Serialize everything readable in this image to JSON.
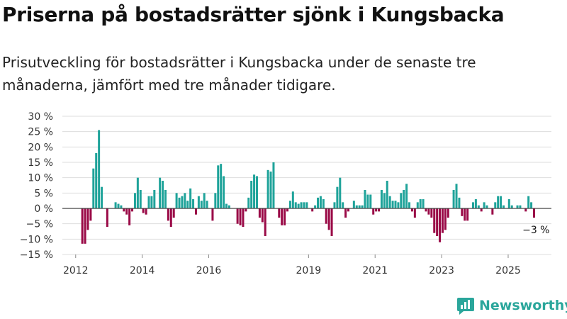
{
  "title": "Priserna på bostadsrätter sjönk i Kungsbacka",
  "subtitle": "Prisutveckling för bostadsrätter i Kungsbacka under de senaste tre månaderna, jämfört med tre månader tidigare.",
  "logo": {
    "text": "Newsworthy",
    "icon": "newsworthy-chart-icon",
    "color": "#2aa69b"
  },
  "chart_data": {
    "type": "bar",
    "title": "Priserna på bostadsrätter sjönk i Kungsbacka",
    "ylim": [
      -15,
      30
    ],
    "yticks": [
      -15,
      -10,
      -5,
      0,
      5,
      10,
      15,
      20,
      25,
      30
    ],
    "ytick_labels": [
      "−15 %",
      "−10 %",
      "−5 %",
      "0 %",
      "5 %",
      "10 %",
      "15 %",
      "20 %",
      "25 %",
      "30 %"
    ],
    "xtick_labels": [
      "2012",
      "2014",
      "2016",
      "2019",
      "2021",
      "2023",
      "2025"
    ],
    "xtick_positions": [
      2012.0,
      2014.0,
      2016.0,
      2019.0,
      2021.0,
      2023.0,
      2025.0
    ],
    "xlim": [
      2011.6,
      2026.3
    ],
    "grid": true,
    "colors": {
      "positive": "#1fa39a",
      "negative": "#9a0a47",
      "zero_line": "#444444",
      "grid": "#dddddd"
    },
    "annotation": {
      "label": "−3 %",
      "value": -3
    },
    "series": [
      {
        "start": 2012.2,
        "step": 0.0833,
        "values": [
          -11.5,
          -11.5,
          -7,
          -4,
          13,
          18,
          25.5,
          7,
          0,
          -6,
          0,
          0,
          2,
          1.5,
          1,
          -1,
          -2,
          -5.5,
          -1,
          5,
          10,
          6,
          -1.5,
          -2,
          4,
          4,
          6,
          0,
          10,
          9,
          6,
          -4,
          -6,
          -3,
          5,
          3.5,
          4,
          5,
          2.5,
          6.5,
          3,
          -2,
          4,
          2.5,
          5,
          2.5,
          0,
          -4,
          5,
          14,
          14.5,
          10.5,
          1.5,
          1,
          0,
          0,
          -5,
          -5.5,
          -6,
          -1,
          3.5,
          9,
          11,
          10.5,
          -3,
          -4.5,
          -9,
          12.5,
          12,
          15,
          0,
          -3,
          -5.5,
          -5.5,
          -1,
          2.5,
          5.5,
          2,
          1.5,
          2,
          2,
          2,
          0,
          -1,
          1,
          3.5,
          4,
          3,
          -5,
          -7,
          -9,
          2,
          7,
          10,
          2,
          -3,
          -1,
          0,
          2.5,
          1,
          1,
          1,
          6,
          4.5,
          4.5,
          -2,
          -1,
          -1,
          6,
          5,
          9,
          4,
          2.5,
          2.5,
          2,
          5,
          6,
          8,
          2,
          -1,
          -3,
          2,
          3,
          3,
          -1,
          -2,
          -3,
          -8,
          -9,
          -11,
          -8,
          -7,
          -3,
          0,
          6,
          8,
          3.5,
          -2.5,
          -4,
          -4,
          0,
          2,
          3,
          1,
          -1,
          2,
          1,
          0,
          -2,
          2,
          4,
          4,
          1,
          0,
          3,
          1,
          0,
          1,
          1,
          0,
          -1,
          4,
          2,
          -3
        ]
      }
    ]
  }
}
